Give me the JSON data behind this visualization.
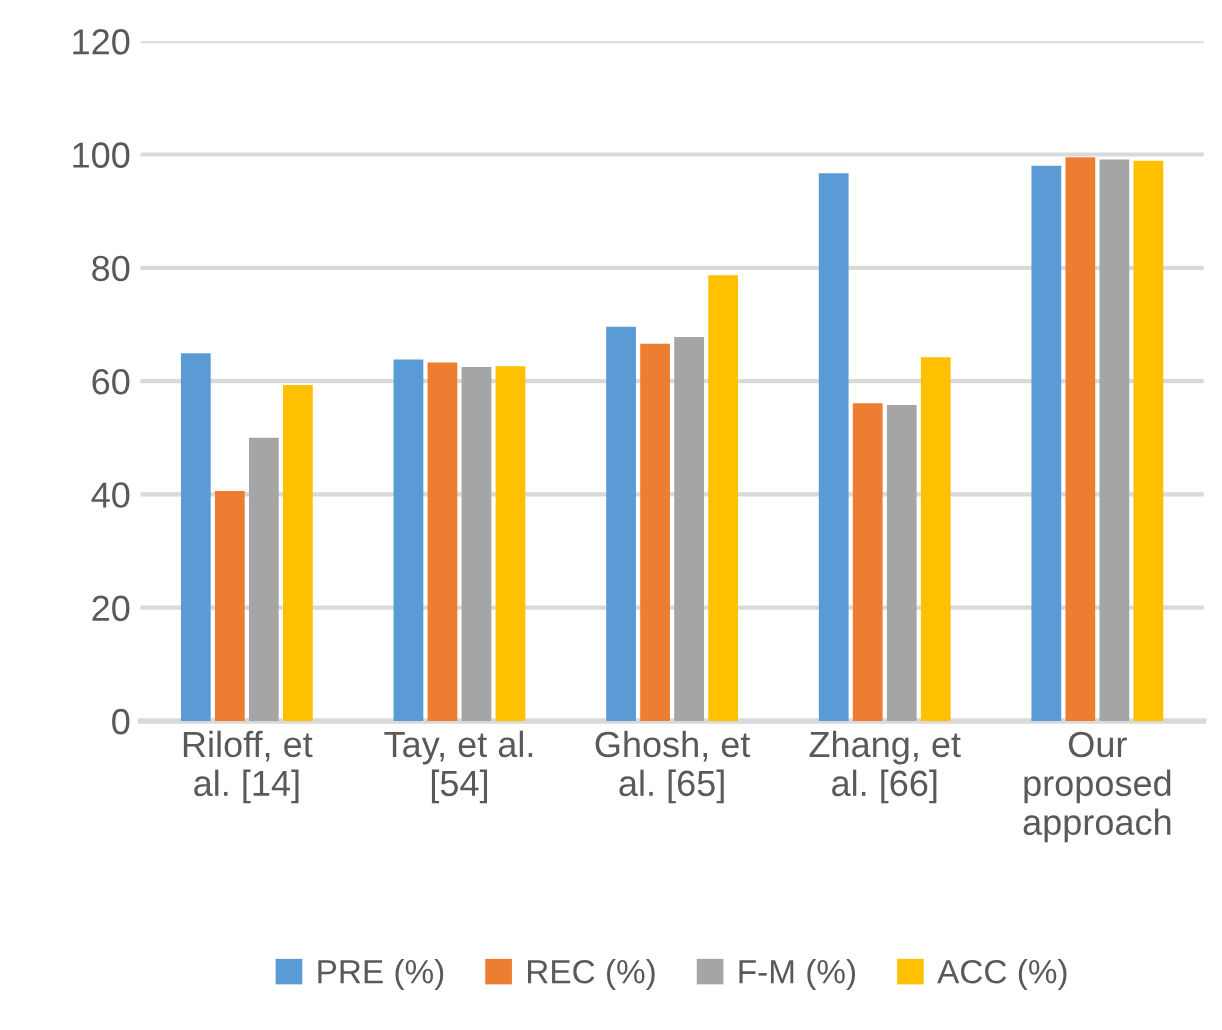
{
  "chart_data": {
    "type": "bar",
    "categories": [
      "Riloff, et\nal. [14]",
      "Tay, et al.\n[54]",
      "Ghosh, et\nal. [65]",
      "Zhang, et\nal. [66]",
      "Our\nproposed\napproach"
    ],
    "series": [
      {
        "name": "PRE (%)",
        "color": "#5b9bd5",
        "values": [
          64.9,
          63.8,
          69.6,
          96.7,
          98.0
        ]
      },
      {
        "name": "REC (%)",
        "color": "#ed7d31",
        "values": [
          40.6,
          63.3,
          66.6,
          56.1,
          99.5
        ]
      },
      {
        "name": "F-M (%)",
        "color": "#a5a5a5",
        "values": [
          50.0,
          62.5,
          67.8,
          55.8,
          99.1
        ]
      },
      {
        "name": "ACC (%)",
        "color": "#ffc000",
        "values": [
          59.3,
          62.6,
          78.7,
          64.2,
          98.9
        ]
      }
    ],
    "ylim": [
      0,
      120
    ],
    "yticks": [
      0,
      20,
      40,
      60,
      80,
      100,
      120
    ],
    "grid": "y",
    "legend": "bottom"
  }
}
